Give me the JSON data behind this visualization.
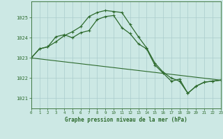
{
  "line1": {
    "x": [
      0,
      1,
      2,
      3,
      4,
      5,
      6,
      7,
      8,
      9,
      10,
      11,
      12,
      13,
      14,
      15,
      16,
      17,
      18,
      19,
      20,
      21,
      22,
      23
    ],
    "y": [
      1023.0,
      1023.45,
      1023.55,
      1023.8,
      1024.1,
      1024.3,
      1024.55,
      1025.05,
      1025.25,
      1025.35,
      1025.3,
      1025.25,
      1024.65,
      1024.05,
      1023.5,
      1022.75,
      1022.3,
      1022.0,
      1021.85,
      1021.25,
      1021.6,
      1021.8,
      1021.85,
      1021.9
    ]
  },
  "line2": {
    "x": [
      0,
      1,
      2,
      3,
      4,
      5,
      6,
      7,
      8,
      9,
      10,
      11,
      12,
      13,
      14,
      15,
      16,
      17,
      18,
      19,
      20,
      21,
      22,
      23
    ],
    "y": [
      1023.0,
      1023.45,
      1023.55,
      1024.05,
      1024.15,
      1024.0,
      1024.25,
      1024.35,
      1024.9,
      1025.05,
      1025.1,
      1024.5,
      1024.2,
      1023.7,
      1023.45,
      1022.65,
      1022.25,
      1021.85,
      1021.95,
      1021.25,
      1021.6,
      1021.8,
      1021.85,
      1021.9
    ]
  },
  "line3": {
    "x": [
      0,
      23
    ],
    "y": [
      1023.0,
      1021.9
    ]
  },
  "color": "#2d6a2d",
  "bg_color": "#cce8e4",
  "grid_color": "#aacccc",
  "xlabel": "Graphe pression niveau de la mer (hPa)",
  "yticks": [
    1021,
    1022,
    1023,
    1024,
    1025
  ],
  "xticks": [
    0,
    1,
    2,
    3,
    4,
    5,
    6,
    7,
    8,
    9,
    10,
    11,
    12,
    13,
    14,
    15,
    16,
    17,
    18,
    19,
    20,
    21,
    22,
    23
  ],
  "xlim": [
    0,
    23
  ],
  "ylim": [
    1020.5,
    1025.8
  ]
}
